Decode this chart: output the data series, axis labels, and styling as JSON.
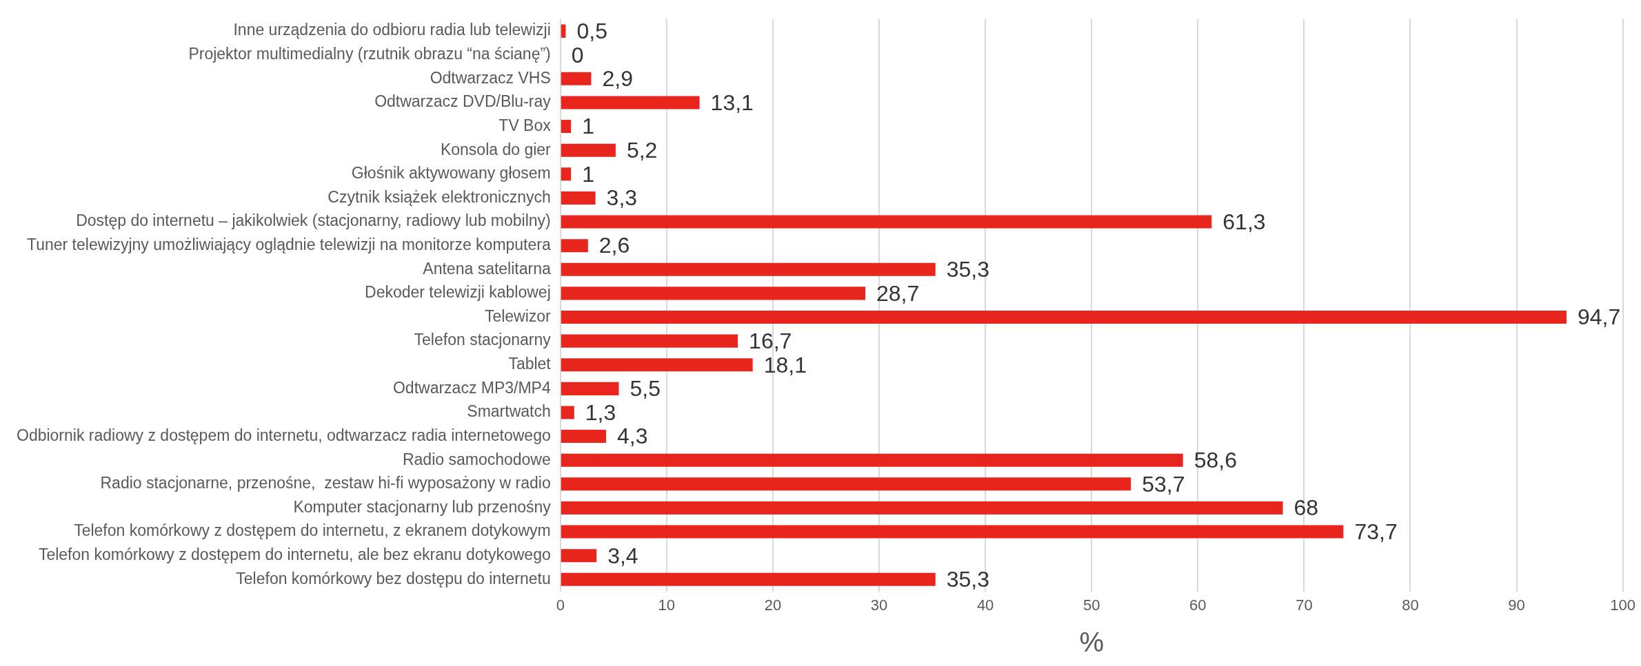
{
  "chart_data": {
    "type": "bar",
    "orientation": "horizontal",
    "xlabel": "%",
    "categories": [
      "Inne urządzenia do odbioru radia lub telewizji",
      "Projektor multimedialny (rzutnik obrazu “na ścianę”)",
      "Odtwarzacz VHS",
      "Odtwarzacz DVD/Blu-ray",
      "TV Box",
      "Konsola do gier",
      "Głośnik aktywowany głosem",
      "Czytnik książek elektronicznych",
      "Dostęp do internetu – jakikolwiek (stacjonarny, radiowy lub mobilny)",
      "Tuner telewizyjny umożliwiający oglądnie telewizji na monitorze komputera",
      "Antena satelitarna",
      "Dekoder telewizji kablowej",
      "Telewizor",
      "Telefon stacjonarny",
      "Tablet",
      "Odtwarzacz MP3/MP4",
      "Smartwatch",
      "Odbiornik radiowy z dostępem do internetu, odtwarzacz radia internetowego",
      "Radio samochodowe",
      "Radio stacjonarne, przenośne,  zestaw hi-fi wyposażony w radio",
      "Komputer stacjonarny lub przenośny",
      "Telefon komórkowy z dostępem do internetu, z ekranem dotykowym",
      "Telefon komórkowy z dostępem do internetu, ale bez ekranu dotykowego",
      "Telefon komórkowy bez dostępu do internetu"
    ],
    "values": [
      0.5,
      0,
      2.9,
      13.1,
      1,
      5.2,
      1,
      3.3,
      61.3,
      2.6,
      35.3,
      28.7,
      94.7,
      16.7,
      18.1,
      5.5,
      1.3,
      4.3,
      58.6,
      53.7,
      68,
      73.7,
      3.4,
      35.3
    ],
    "value_labels": [
      "0,5",
      "0",
      "2,9",
      "13,1",
      "1",
      "5,2",
      "1",
      "3,3",
      "61,3",
      "2,6",
      "35,3",
      "28,7",
      "94,7",
      "16,7",
      "18,1",
      "5,5",
      "1,3",
      "4,3",
      "58,6",
      "53,7",
      "68",
      "73,7",
      "3,4",
      "35,3"
    ],
    "color": "#e8261e",
    "xlim": [
      0,
      100
    ],
    "xticks": [
      0,
      10,
      20,
      30,
      40,
      50,
      60,
      70,
      80,
      90,
      100
    ],
    "grid": "x",
    "legend": false
  }
}
